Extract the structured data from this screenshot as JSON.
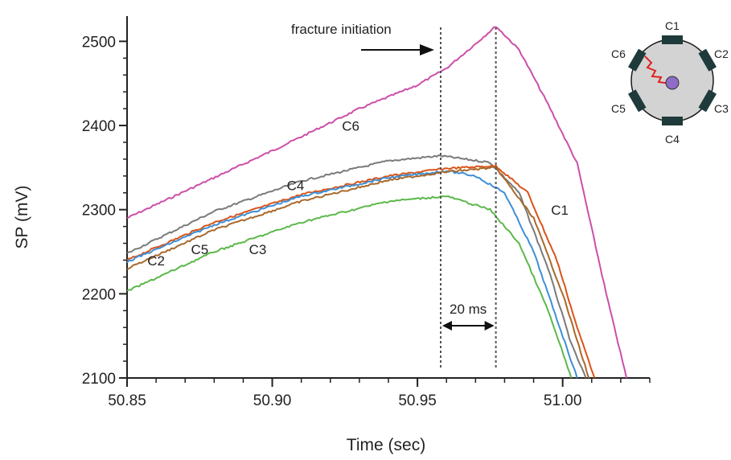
{
  "chart_data": {
    "type": "line",
    "xlabel": "Time (sec)",
    "ylabel": "SP (mV)",
    "xlim": [
      50.85,
      51.03
    ],
    "ylim": [
      2100,
      2530
    ],
    "xticks": [
      "50.85",
      "50.90",
      "50.95",
      "51.00"
    ],
    "yticks": [
      "2100",
      "2200",
      "2300",
      "2400",
      "2500"
    ],
    "grid": false,
    "series": [
      {
        "name": "C6",
        "color": "#cc4fa8",
        "x": [
          50.85,
          50.87,
          50.9,
          50.93,
          50.95,
          50.96,
          50.97,
          50.977,
          50.985,
          50.995,
          51.005,
          51.015,
          51.022
        ],
        "y": [
          2290,
          2322,
          2370,
          2420,
          2448,
          2468,
          2497,
          2518,
          2490,
          2425,
          2355,
          2200,
          2100
        ]
      },
      {
        "name": "C4",
        "color": "#7a7a7a",
        "x": [
          50.85,
          50.88,
          50.91,
          50.94,
          50.958,
          50.975,
          50.985,
          50.995,
          51.003,
          51.008
        ],
        "y": [
          2248,
          2298,
          2334,
          2358,
          2364,
          2356,
          2320,
          2230,
          2140,
          2100
        ]
      },
      {
        "name": "C1",
        "color": "#d9541a",
        "x": [
          50.85,
          50.88,
          50.91,
          50.94,
          50.96,
          50.977,
          50.988,
          50.998,
          51.005,
          51.011
        ],
        "y": [
          2240,
          2285,
          2318,
          2340,
          2349,
          2352,
          2320,
          2240,
          2160,
          2100
        ]
      },
      {
        "name": "C2",
        "color": "#3d8fd6",
        "x": [
          50.85,
          50.88,
          50.91,
          50.94,
          50.96,
          50.97,
          50.98,
          50.99,
          50.998,
          51.005
        ],
        "y": [
          2238,
          2282,
          2316,
          2338,
          2346,
          2340,
          2320,
          2250,
          2170,
          2100
        ]
      },
      {
        "name": "C5",
        "color": "#a9692b",
        "x": [
          50.85,
          50.88,
          50.91,
          50.94,
          50.96,
          50.977,
          50.99,
          51.0,
          51.009
        ],
        "y": [
          2230,
          2276,
          2310,
          2335,
          2345,
          2350,
          2290,
          2200,
          2100
        ]
      },
      {
        "name": "C3",
        "color": "#5cb84a",
        "x": [
          50.85,
          50.88,
          50.91,
          50.94,
          50.96,
          50.975,
          50.985,
          50.995,
          51.003
        ],
        "y": [
          2203,
          2250,
          2285,
          2310,
          2316,
          2300,
          2260,
          2180,
          2100
        ]
      }
    ],
    "series_labels": [
      {
        "text": "C6",
        "x": 50.924,
        "y": 2394
      },
      {
        "text": "C4",
        "x": 50.905,
        "y": 2323
      },
      {
        "text": "C1",
        "x": 50.996,
        "y": 2294
      },
      {
        "text": "C2",
        "x": 50.857,
        "y": 2234
      },
      {
        "text": "C5",
        "x": 50.872,
        "y": 2247
      },
      {
        "text": "C3",
        "x": 50.892,
        "y": 2247
      }
    ],
    "annotations": {
      "fracture_label": "fracture initiation",
      "interval_label": "20 ms",
      "vline_1_x": 50.958,
      "vline_2_x": 50.977
    },
    "sensor_diagram": {
      "labels": [
        "C1",
        "C2",
        "C3",
        "C4",
        "C5",
        "C6"
      ]
    }
  }
}
